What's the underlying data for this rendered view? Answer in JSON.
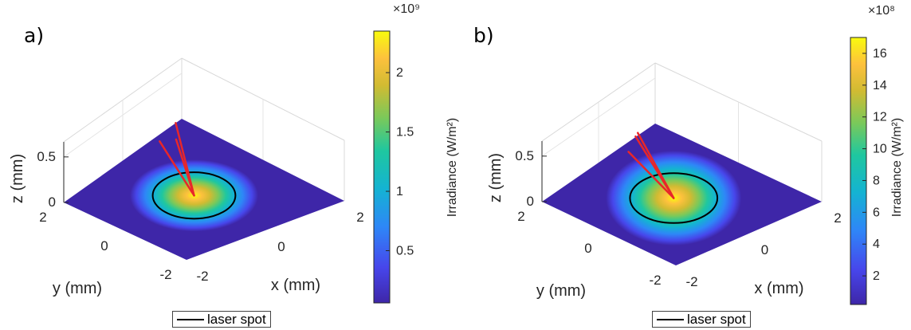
{
  "panels": [
    {
      "label": "a)",
      "legend": "laser spot",
      "chart_data": {
        "type": "surface",
        "xlabel": "x (mm)",
        "ylabel": "y (mm)",
        "zlabel": "z (mm)",
        "xticks": [
          "-2",
          "0",
          "2"
        ],
        "yticks": [
          "-2",
          "0",
          "2"
        ],
        "zticks": [
          "0",
          "0.5"
        ],
        "xlim": [
          -2,
          2
        ],
        "ylim": [
          -2,
          2
        ],
        "zlim": [
          0,
          0.7
        ],
        "colormap": "parula",
        "colorbar": {
          "label": "Irradiance (W/m²)",
          "exponent": "×10⁹",
          "ticks": [
            "0.5",
            "1",
            "1.5",
            "2"
          ],
          "tick_values": [
            0.5,
            1,
            1.5,
            2
          ],
          "range": [
            0.06,
            2.35
          ]
        },
        "series": [
          {
            "name": "laser spot",
            "shape": "ellipse",
            "center": [
              0,
              0
            ],
            "radius_x": 1.2,
            "radius_y": 1.2,
            "color": "#000000"
          }
        ],
        "rays": {
          "color": "#e8262a",
          "origin": [
            0,
            0,
            0
          ],
          "tips": [
            [
              -0.55,
              0.45,
              0.62
            ],
            [
              0.05,
              0.55,
              0.5
            ],
            [
              0.2,
              0.7,
              0.62
            ]
          ]
        }
      }
    },
    {
      "label": "b)",
      "legend": "laser spot",
      "chart_data": {
        "type": "surface",
        "xlabel": "x (mm)",
        "ylabel": "y (mm)",
        "zlabel": "z (mm)",
        "xticks": [
          "-2",
          "0",
          "2"
        ],
        "yticks": [
          "-2",
          "0",
          "2"
        ],
        "zticks": [
          "0",
          "0.5"
        ],
        "xlim": [
          -2,
          2
        ],
        "ylim": [
          -2,
          2
        ],
        "zlim": [
          0,
          0.7
        ],
        "colormap": "parula",
        "colorbar": {
          "label": "Irradiance (W/m²)",
          "exponent": "×10⁸",
          "ticks": [
            "2",
            "4",
            "6",
            "8",
            "10",
            "12",
            "14",
            "16"
          ],
          "tick_values": [
            2,
            4,
            6,
            8,
            10,
            12,
            14,
            16
          ],
          "range": [
            0.2,
            17
          ]
        },
        "series": [
          {
            "name": "laser spot",
            "shape": "ellipse",
            "center": [
              0,
              0
            ],
            "radius_x": 1.35,
            "radius_y": 1.1,
            "color": "#000000"
          }
        ],
        "rays": {
          "color": "#e8262a",
          "origin": [
            0,
            0,
            0
          ],
          "tips": [
            [
              -0.9,
              0.45,
              0.6
            ],
            [
              -0.5,
              0.6,
              0.66
            ],
            [
              -0.25,
              0.75,
              0.62
            ]
          ]
        }
      }
    }
  ]
}
